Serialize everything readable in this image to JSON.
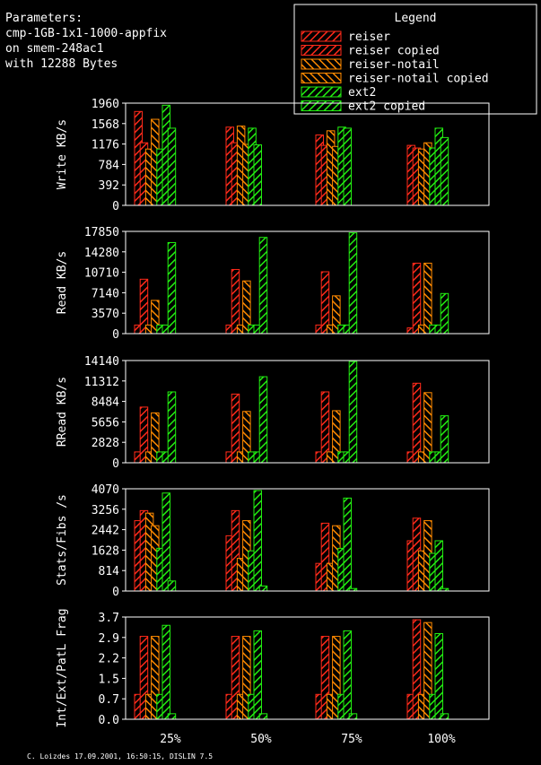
{
  "header": {
    "lines": [
      "Parameters:",
      "cmp-1GB-1x1-1000-appfix",
      "on smem-248ac1",
      "with 12288 Bytes"
    ]
  },
  "legend": {
    "title": "Legend",
    "items": [
      {
        "label": "reiser",
        "color": "#ff2a1a"
      },
      {
        "label": "reiser copied",
        "color": "#ff2a1a"
      },
      {
        "label": "reiser-notail",
        "color": "#ff8a00"
      },
      {
        "label": "reiser-notail copied",
        "color": "#ff8a00"
      },
      {
        "label": "ext2",
        "color": "#22ee11"
      },
      {
        "label": "ext2 copied",
        "color": "#22ee11"
      }
    ]
  },
  "footer": "C. Loizdes 17.09.2001, 16:50:15, DISLIN 7.5",
  "chart_data": [
    {
      "type": "bar",
      "ylabel": "Write KB/s",
      "ylim": [
        0,
        1960
      ],
      "yticks": [
        "0",
        "392",
        "784",
        "1176",
        "1568",
        "1960"
      ],
      "categories": [
        "25%",
        "50%",
        "75%",
        "100%"
      ],
      "series": [
        {
          "name": "reiser",
          "values": [
            [
              1800,
              1200
            ],
            [
              1500,
              1200
            ],
            [
              1350,
              1150
            ],
            [
              1150,
              1100
            ]
          ]
        },
        {
          "name": "reiser copied",
          "values": [
            [
              0,
              0
            ],
            [
              0,
              0
            ],
            [
              0,
              0
            ],
            [
              0,
              0
            ]
          ]
        },
        {
          "name": "reiser-notail",
          "values": [
            [
              1650,
              1080
            ],
            [
              1520,
              1170
            ],
            [
              1430,
              1130
            ],
            [
              1200,
              1100
            ]
          ]
        },
        {
          "name": "ext2",
          "values": [
            [
              1920,
              1480
            ],
            [
              1480,
              1160
            ],
            [
              1500,
              1480
            ],
            [
              1480,
              1300
            ]
          ]
        }
      ],
      "bars": [
        [
          1800,
          1200,
          1080,
          1650,
          1080,
          1920,
          1480
        ],
        [
          1500,
          1200,
          1520,
          1170,
          1480,
          1160
        ],
        [
          1350,
          1150,
          1430,
          1130,
          1500,
          1480
        ],
        [
          1150,
          1100,
          1080,
          1200,
          1100,
          1480,
          1300
        ]
      ]
    },
    {
      "type": "bar",
      "ylabel": "Read KB/s",
      "ylim": [
        0,
        17850
      ],
      "yticks": [
        "0",
        "3570",
        "7140",
        "10710",
        "14280",
        "17850"
      ],
      "categories": [
        "25%",
        "50%",
        "75%",
        "100%"
      ],
      "bars": [
        [
          1500,
          9500,
          1500,
          5800,
          1500,
          1500,
          15900
        ],
        [
          1500,
          11200,
          1500,
          9200,
          1500,
          1500,
          16800
        ],
        [
          1500,
          10800,
          1500,
          6600,
          1500,
          1500,
          17600
        ],
        [
          1000,
          12300,
          1500,
          12300,
          1500,
          1500,
          7000
        ]
      ]
    },
    {
      "type": "bar",
      "ylabel": "RRead KB/s",
      "ylim": [
        0,
        14140
      ],
      "yticks": [
        "0",
        "2828",
        "5656",
        "8484",
        "11312",
        "14140"
      ],
      "categories": [
        "25%",
        "50%",
        "75%",
        "100%"
      ],
      "bars": [
        [
          1500,
          7700,
          1500,
          6900,
          1500,
          1500,
          9800
        ],
        [
          1500,
          9500,
          1500,
          7100,
          1500,
          1500,
          11900
        ],
        [
          1500,
          9800,
          1500,
          7200,
          1500,
          1500,
          14000
        ],
        [
          1500,
          11000,
          1500,
          9700,
          1500,
          1500,
          6500
        ]
      ]
    },
    {
      "type": "bar",
      "ylabel": "Stats/Fibs /s",
      "ylim": [
        0,
        4070
      ],
      "yticks": [
        "0",
        "814",
        "1628",
        "2442",
        "3256",
        "4070"
      ],
      "categories": [
        "25%",
        "50%",
        "75%",
        "100%"
      ],
      "bars": [
        [
          2800,
          3200,
          3100,
          2600,
          1700,
          3900,
          400
        ],
        [
          2200,
          3200,
          1300,
          2800,
          1600,
          4000,
          200
        ],
        [
          1100,
          2700,
          1100,
          2600,
          1700,
          3700,
          100
        ],
        [
          2000,
          2900,
          1600,
          2800,
          1500,
          2000,
          100
        ]
      ]
    },
    {
      "type": "bar",
      "ylabel": "Int/Ext/PatL Frag",
      "ylim": [
        0,
        3.7
      ],
      "yticks": [
        "0.0",
        "0.7",
        "1.5",
        "2.2",
        "2.9",
        "3.7"
      ],
      "categories": [
        "25%",
        "50%",
        "75%",
        "100%"
      ],
      "bars": [
        [
          0.9,
          3.0,
          0.9,
          3.0,
          0.9,
          3.4,
          0.2
        ],
        [
          0.9,
          3.0,
          0.9,
          3.0,
          0.9,
          3.2,
          0.2
        ],
        [
          0.9,
          3.0,
          0.9,
          3.0,
          0.9,
          3.2,
          0.2
        ],
        [
          0.9,
          3.6,
          0.9,
          3.5,
          0.9,
          3.1,
          0.2
        ]
      ]
    }
  ]
}
